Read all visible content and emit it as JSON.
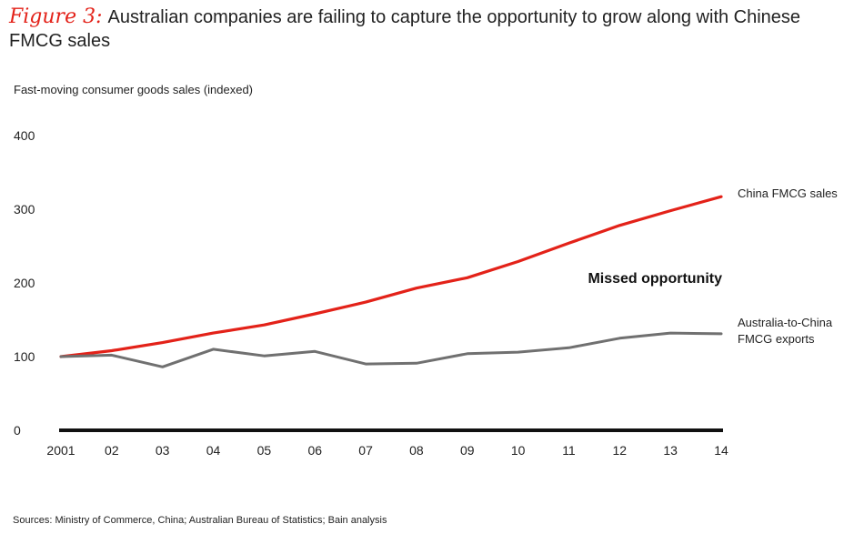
{
  "header": {
    "figure_label": "Figure 3:",
    "title": "Australian companies are failing to capture the opportunity to grow along with Chinese FMCG sales"
  },
  "y_unit": "Fast-moving consumer goods sales (indexed)",
  "source": "Sources: Ministry of Commerce, China; Australian Bureau of Statistics; Bain analysis",
  "colors": {
    "china": "#e32219",
    "australia": "#707070",
    "axis": "#111111"
  },
  "chart_data": {
    "type": "line",
    "title": "Australian companies are failing to capture the opportunity to grow along with Chinese FMCG sales",
    "ylabel": "Fast-moving consumer goods sales (indexed)",
    "xlabel": "",
    "categories": [
      "2001",
      "02",
      "03",
      "04",
      "05",
      "06",
      "07",
      "08",
      "09",
      "10",
      "11",
      "12",
      "13",
      "14"
    ],
    "ylim": [
      0,
      400
    ],
    "yticks": [
      0,
      100,
      200,
      300,
      400
    ],
    "grid": false,
    "series": [
      {
        "name": "China FMCG sales",
        "label_lines": [
          "China FMCG sales"
        ],
        "values": [
          100,
          108,
          119,
          132,
          143,
          158,
          174,
          193,
          207,
          229,
          254,
          278,
          298,
          317
        ]
      },
      {
        "name": "Australia-to-China FMCG exports",
        "label_lines": [
          "Australia-to-China",
          "FMCG exports"
        ],
        "values": [
          100,
          102,
          86,
          110,
          101,
          107,
          90,
          91,
          104,
          106,
          112,
          125,
          132,
          131
        ]
      }
    ],
    "annotation": "Missed opportunity"
  }
}
